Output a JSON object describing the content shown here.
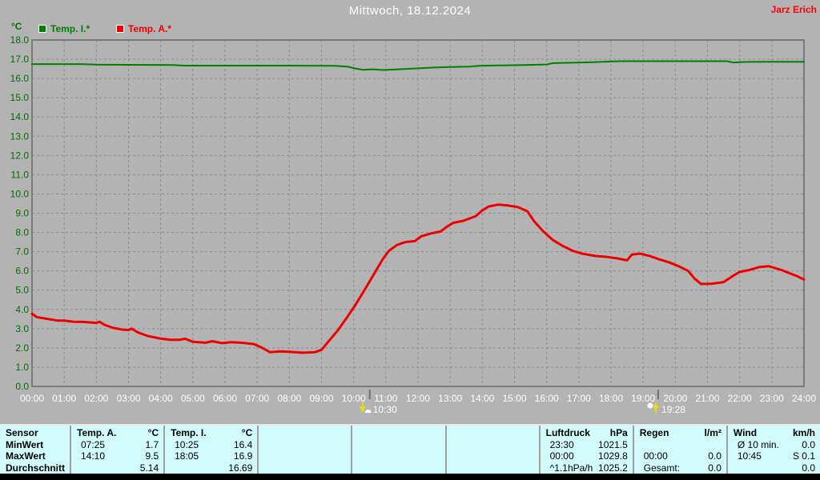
{
  "header": {
    "title": "Mittwoch, 18.12.2024",
    "user": "Jarz Erich"
  },
  "colors": {
    "background": "#b3b3b3",
    "grid": "#8d8d8d",
    "plot_border": "#7a7a7a",
    "y_tick_text": "#006e00",
    "x_tick_text": "#ffffff",
    "temp_i_green": "#008000",
    "temp_a_red": "#ee0000",
    "marker_yellow": "#f0df00",
    "marker_white": "#ffffff",
    "table_background": "#d2fbfb",
    "table_separator": "#9f9f9f",
    "title_text": "#ffffff",
    "user_text": "#ff0000",
    "bottom_strip": "#000000"
  },
  "chart_data": {
    "type": "line",
    "title": "Mittwoch, 18.12.2024",
    "xlabel": "",
    "ylabel": "°C",
    "ylim": [
      0,
      18
    ],
    "y_tick_step": 1.0,
    "xlim_hours": [
      0,
      24
    ],
    "grid": true,
    "legend_position": "top-left",
    "x_tick_labels": [
      "00:00",
      "01:00",
      "02:00",
      "03:00",
      "04:00",
      "05:00",
      "06:00",
      "07:00",
      "08:00",
      "09:00",
      "10:00",
      "11:00",
      "12:00",
      "13:00",
      "14:00",
      "15:00",
      "16:00",
      "17:00",
      "18:00",
      "19:00",
      "20:00",
      "21:00",
      "22:00",
      "23:00",
      "24:00"
    ],
    "series": [
      {
        "name": "Temp. I.*",
        "color": "#008000",
        "width": 2,
        "points": [
          [
            0,
            16.75
          ],
          [
            1.5,
            16.75
          ],
          [
            2,
            16.72
          ],
          [
            3,
            16.71
          ],
          [
            4.4,
            16.7
          ],
          [
            4.7,
            16.67
          ],
          [
            6,
            16.67
          ],
          [
            8,
            16.67
          ],
          [
            9.4,
            16.66
          ],
          [
            9.8,
            16.62
          ],
          [
            10.05,
            16.52
          ],
          [
            10.3,
            16.45
          ],
          [
            10.6,
            16.48
          ],
          [
            10.9,
            16.44
          ],
          [
            11.2,
            16.46
          ],
          [
            11.6,
            16.49
          ],
          [
            12,
            16.53
          ],
          [
            12.5,
            16.57
          ],
          [
            13,
            16.6
          ],
          [
            13.6,
            16.62
          ],
          [
            13.9,
            16.66
          ],
          [
            14.5,
            16.68
          ],
          [
            15.3,
            16.7
          ],
          [
            16,
            16.73
          ],
          [
            16.2,
            16.8
          ],
          [
            16.8,
            16.82
          ],
          [
            17.3,
            16.84
          ],
          [
            18,
            16.88
          ],
          [
            18.3,
            16.9
          ],
          [
            19.5,
            16.9
          ],
          [
            21.6,
            16.9
          ],
          [
            21.8,
            16.83
          ],
          [
            22.2,
            16.86
          ],
          [
            23,
            16.87
          ],
          [
            24,
            16.87
          ]
        ]
      },
      {
        "name": "Temp. A.*",
        "color": "#ee0000",
        "width": 3,
        "points": [
          [
            0,
            3.78
          ],
          [
            0.15,
            3.6
          ],
          [
            0.5,
            3.5
          ],
          [
            0.8,
            3.42
          ],
          [
            1,
            3.42
          ],
          [
            1.3,
            3.36
          ],
          [
            1.6,
            3.35
          ],
          [
            2,
            3.3
          ],
          [
            2.1,
            3.36
          ],
          [
            2.25,
            3.2
          ],
          [
            2.5,
            3.05
          ],
          [
            2.8,
            2.95
          ],
          [
            3,
            2.93
          ],
          [
            3.1,
            3.0
          ],
          [
            3.3,
            2.8
          ],
          [
            3.6,
            2.62
          ],
          [
            4,
            2.48
          ],
          [
            4.3,
            2.42
          ],
          [
            4.6,
            2.42
          ],
          [
            4.75,
            2.48
          ],
          [
            5,
            2.32
          ],
          [
            5.4,
            2.27
          ],
          [
            5.6,
            2.35
          ],
          [
            5.9,
            2.25
          ],
          [
            6.2,
            2.3
          ],
          [
            6.5,
            2.27
          ],
          [
            6.9,
            2.2
          ],
          [
            7.1,
            2.05
          ],
          [
            7.4,
            1.78
          ],
          [
            7.7,
            1.82
          ],
          [
            8,
            1.8
          ],
          [
            8.4,
            1.75
          ],
          [
            8.8,
            1.78
          ],
          [
            9,
            1.9
          ],
          [
            9.2,
            2.3
          ],
          [
            9.5,
            2.9
          ],
          [
            9.8,
            3.6
          ],
          [
            10,
            4.1
          ],
          [
            10.3,
            4.9
          ],
          [
            10.6,
            5.75
          ],
          [
            10.9,
            6.6
          ],
          [
            11.1,
            7.05
          ],
          [
            11.35,
            7.35
          ],
          [
            11.6,
            7.5
          ],
          [
            11.9,
            7.55
          ],
          [
            12.1,
            7.8
          ],
          [
            12.4,
            7.95
          ],
          [
            12.7,
            8.05
          ],
          [
            12.9,
            8.3
          ],
          [
            13.1,
            8.5
          ],
          [
            13.4,
            8.6
          ],
          [
            13.8,
            8.85
          ],
          [
            14,
            9.15
          ],
          [
            14.2,
            9.35
          ],
          [
            14.5,
            9.45
          ],
          [
            14.8,
            9.4
          ],
          [
            15.1,
            9.32
          ],
          [
            15.4,
            9.1
          ],
          [
            15.6,
            8.6
          ],
          [
            15.9,
            8.05
          ],
          [
            16.2,
            7.6
          ],
          [
            16.5,
            7.3
          ],
          [
            16.8,
            7.05
          ],
          [
            17.1,
            6.9
          ],
          [
            17.5,
            6.78
          ],
          [
            17.9,
            6.72
          ],
          [
            18.2,
            6.65
          ],
          [
            18.5,
            6.55
          ],
          [
            18.65,
            6.85
          ],
          [
            18.9,
            6.9
          ],
          [
            19.2,
            6.78
          ],
          [
            19.5,
            6.6
          ],
          [
            19.8,
            6.45
          ],
          [
            20.1,
            6.25
          ],
          [
            20.4,
            6.0
          ],
          [
            20.6,
            5.6
          ],
          [
            20.8,
            5.32
          ],
          [
            21.1,
            5.33
          ],
          [
            21.5,
            5.42
          ],
          [
            21.8,
            5.75
          ],
          [
            22,
            5.95
          ],
          [
            22.3,
            6.05
          ],
          [
            22.6,
            6.2
          ],
          [
            22.9,
            6.25
          ],
          [
            23.1,
            6.15
          ],
          [
            23.3,
            6.05
          ],
          [
            23.6,
            5.85
          ],
          [
            23.8,
            5.72
          ],
          [
            24,
            5.55
          ]
        ]
      }
    ],
    "markers": [
      {
        "time": "10:30",
        "hour": 10.5,
        "type": "moonset"
      },
      {
        "time": "19:28",
        "hour": 19.4667,
        "type": "moonrise"
      }
    ]
  },
  "table": {
    "row_labels": [
      "Sensor",
      "MinWert",
      "MaxWert",
      "Durchschnitt"
    ],
    "columns": [
      {
        "key": "temp-a",
        "name": "Temp. A.",
        "unit": "°C",
        "rows": [
          [
            "07:25",
            "1.7"
          ],
          [
            "14:10",
            "9.5"
          ],
          [
            "",
            "5.14"
          ]
        ]
      },
      {
        "key": "temp-i",
        "name": "Temp. I.",
        "unit": "°C",
        "rows": [
          [
            "10:25",
            "16.4"
          ],
          [
            "18:05",
            "16.9"
          ],
          [
            "",
            "16.69"
          ]
        ]
      },
      {
        "key": "empty-1",
        "name": "",
        "unit": "",
        "rows": [
          [
            "",
            ""
          ],
          [
            "",
            ""
          ],
          [
            "",
            ""
          ]
        ]
      },
      {
        "key": "empty-2",
        "name": "",
        "unit": "",
        "rows": [
          [
            "",
            ""
          ],
          [
            "",
            ""
          ],
          [
            "",
            ""
          ]
        ]
      },
      {
        "key": "empty-3",
        "name": "",
        "unit": "",
        "rows": [
          [
            "",
            ""
          ],
          [
            "",
            ""
          ],
          [
            "",
            ""
          ]
        ]
      },
      {
        "key": "luftdruck",
        "name": "Luftdruck",
        "unit": "hPa",
        "rows": [
          [
            "23:30",
            "1021.5"
          ],
          [
            "00:00",
            "1029.8"
          ],
          [
            "^1.1hPa/h",
            "1025.2"
          ]
        ]
      },
      {
        "key": "regen",
        "name": "Regen",
        "unit": "l/m²",
        "rows": [
          [
            "",
            ""
          ],
          [
            "00:00",
            "0.0"
          ],
          [
            "Gesamt:",
            "0.0"
          ]
        ]
      },
      {
        "key": "wind",
        "name": "Wind",
        "unit": "km/h",
        "rows": [
          [
            "Ø 10 min.",
            "0.0"
          ],
          [
            "10:45",
            "S 0.1"
          ],
          [
            "",
            "0.0"
          ]
        ]
      }
    ]
  }
}
